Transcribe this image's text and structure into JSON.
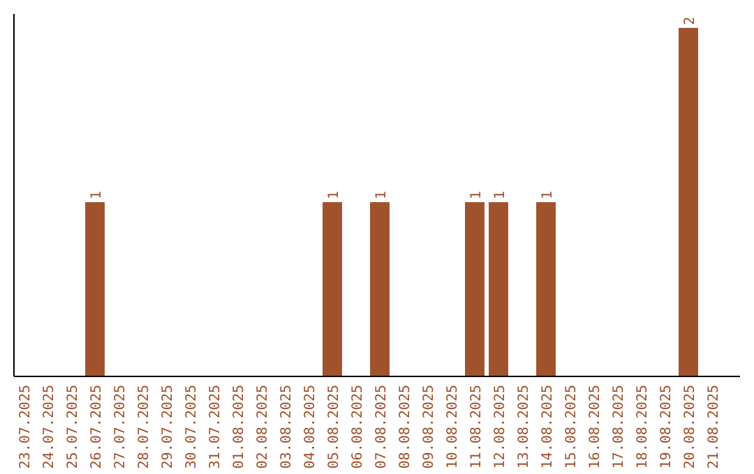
{
  "chart_data": {
    "type": "bar",
    "categories": [
      "23.07.2025",
      "24.07.2025",
      "25.07.2025",
      "26.07.2025",
      "27.07.2025",
      "28.07.2025",
      "29.07.2025",
      "30.07.2025",
      "31.07.2025",
      "01.08.2025",
      "02.08.2025",
      "03.08.2025",
      "04.08.2025",
      "05.08.2025",
      "06.08.2025",
      "07.08.2025",
      "08.08.2025",
      "09.08.2025",
      "10.08.2025",
      "11.08.2025",
      "12.08.2025",
      "13.08.2025",
      "14.08.2025",
      "15.08.2025",
      "16.08.2025",
      "17.08.2025",
      "18.08.2025",
      "19.08.2025",
      "20.08.2025",
      "21.08.2025"
    ],
    "values": [
      0,
      0,
      0,
      1,
      0,
      0,
      0,
      0,
      0,
      0,
      0,
      0,
      0,
      1,
      0,
      1,
      0,
      0,
      0,
      1,
      1,
      0,
      1,
      0,
      0,
      0,
      0,
      0,
      2,
      0
    ],
    "value_labels": [
      null,
      null,
      null,
      "1",
      null,
      null,
      null,
      null,
      null,
      null,
      null,
      null,
      null,
      "1",
      null,
      "1",
      null,
      null,
      null,
      "1",
      "1",
      null,
      "1",
      null,
      null,
      null,
      null,
      null,
      "2",
      null
    ],
    "color": "#a0522d"
  }
}
